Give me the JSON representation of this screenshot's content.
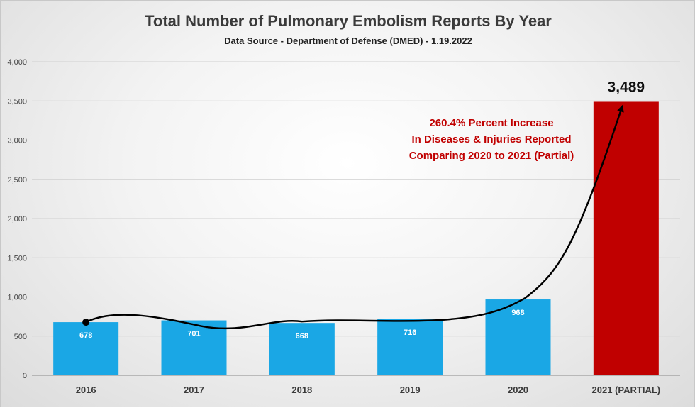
{
  "chart_data": {
    "type": "bar",
    "title": "Total Number of Pulmonary Embolism Reports By Year",
    "subtitle": "Data Source - Department of Defense (DMED) - 1.19.2022",
    "categories": [
      "2016",
      "2017",
      "2018",
      "2019",
      "2020",
      "2021 (PARTIAL)"
    ],
    "values": [
      678,
      701,
      668,
      716,
      968,
      3489
    ],
    "value_labels": [
      "678",
      "701",
      "668",
      "716",
      "968",
      "3,489"
    ],
    "ylim": [
      0,
      4000
    ],
    "yticks": [
      0,
      500,
      1000,
      1500,
      2000,
      2500,
      3000,
      3500,
      4000
    ],
    "ytick_labels": [
      "0",
      "500",
      "1,000",
      "1,500",
      "2,000",
      "2,500",
      "3,000",
      "3,500",
      "4,000"
    ],
    "grid": true,
    "legend": "none",
    "colors": {
      "bar": "#1aa7e5",
      "highlight": "#c00000",
      "annotation": "#c00000"
    },
    "annotation": {
      "lines": [
        "260.4% Percent Increase",
        "In Diseases & Injuries Reported",
        "Comparing 2020 to 2021 (Partial)"
      ]
    },
    "trend_arrow": true
  }
}
